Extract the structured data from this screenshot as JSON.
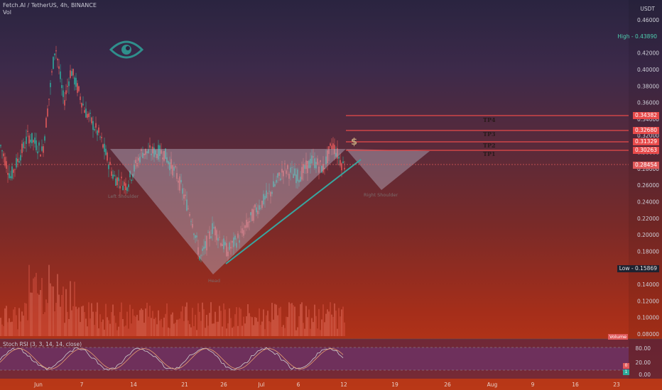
{
  "header": {
    "symbol_line": "Fetch.AI / TetherUS, 4h, BINANCE",
    "volume_label": "Vol",
    "currency": "USDT"
  },
  "colors": {
    "up": "#2fa89a",
    "down": "#e0595a",
    "tp_line": "#e84a4a",
    "trend": "#38a6a0",
    "pattern_fill": "#b8b0c4",
    "eye_logo": "#2f8f8c"
  },
  "price_axis": {
    "ticks": [
      "0.46000",
      "0.42000",
      "0.40000",
      "0.38000",
      "0.36000",
      "0.34000",
      "0.32000",
      "0.30000",
      "0.28000",
      "0.26000",
      "0.24000",
      "0.22000",
      "0.20000",
      "0.18000",
      "0.16000",
      "0.14000",
      "0.12000",
      "0.10000",
      "0.08000"
    ],
    "high_label": "High",
    "high_value": "0.43890",
    "low_label": "Low",
    "low_value": "0.15869",
    "current_price": "0.28454",
    "tp_tags": [
      "0.34382",
      "0.32680",
      "0.31329",
      "0.30263"
    ]
  },
  "targets": [
    "TP4",
    "TP3",
    "TP2",
    "TP1"
  ],
  "pattern_labels": {
    "left": "Left Shoulder",
    "head": "Head",
    "right": "Right Shoulder",
    "dollar": "$"
  },
  "stoch": {
    "label": "Stoch RSI (3, 3, 14, 14, close)",
    "ticks": [
      "80.00",
      "20.00",
      "0.00"
    ],
    "k_tag": "0",
    "d_tag": "1"
  },
  "time_axis": [
    "Jun",
    "7",
    "14",
    "21",
    "26",
    "Jul",
    "6",
    "12",
    "19",
    "26",
    "Aug",
    "9",
    "16",
    "23"
  ],
  "volume_tag": "Volume"
}
